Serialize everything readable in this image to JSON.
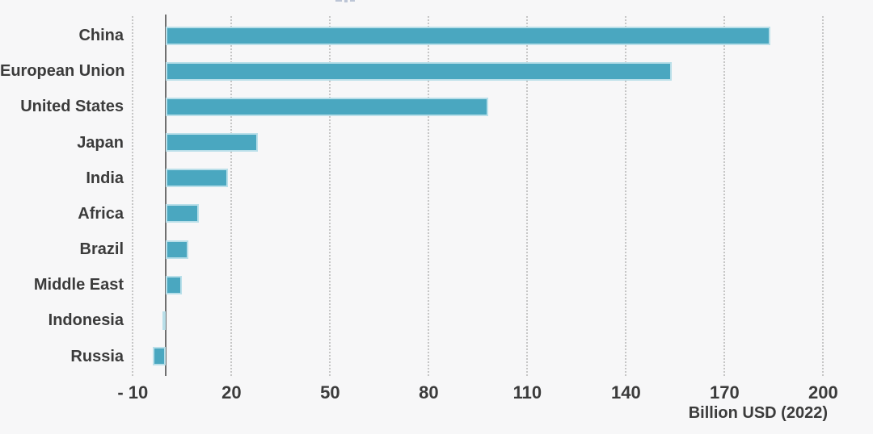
{
  "chart_data": {
    "type": "bar",
    "orientation": "horizontal",
    "categories": [
      "China",
      "European Union",
      "United States",
      "Japan",
      "India",
      "Africa",
      "Brazil",
      "Middle East",
      "Indonesia",
      "Russia"
    ],
    "values": [
      184,
      154,
      98,
      28,
      19,
      10,
      7,
      5,
      -1,
      -4
    ],
    "title": "",
    "xlabel": "Billion USD (2022)",
    "ylabel": "",
    "x_ticks": [
      -10,
      20,
      50,
      80,
      110,
      140,
      170,
      200
    ],
    "x_tick_labels": [
      "- 10",
      "20",
      "50",
      "80",
      "110",
      "140",
      "170",
      "200"
    ],
    "xlim": [
      -15,
      215
    ],
    "grid": "vertical-dashed",
    "legend": "none",
    "colors": {
      "bar_fill": "#4aa7c0",
      "bar_edge": "#b9dfe9",
      "gridline": "#c6c6c6",
      "axis_line": "#6f6f6f",
      "text": "#3b3b3b",
      "background": "#f7f7f8"
    }
  }
}
